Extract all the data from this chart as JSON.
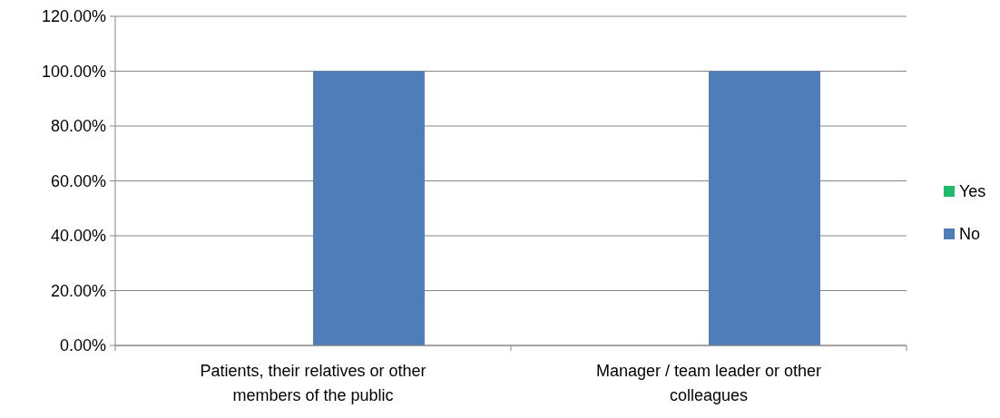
{
  "chart_data": {
    "type": "bar",
    "categories": [
      "Patients, their relatives or other members of the public",
      "Manager / team leader or other colleagues"
    ],
    "series": [
      {
        "name": "Yes",
        "color": "#1fba6b",
        "values": [
          0,
          0
        ]
      },
      {
        "name": "No",
        "color": "#4f7db8",
        "values": [
          100,
          100
        ]
      }
    ],
    "ylim": [
      0,
      120
    ],
    "yticks": [
      {
        "value": 0,
        "label": "0.00%"
      },
      {
        "value": 20,
        "label": "20.00%"
      },
      {
        "value": 40,
        "label": "40.00%"
      },
      {
        "value": 60,
        "label": "60.00%"
      },
      {
        "value": 80,
        "label": "80.00%"
      },
      {
        "value": 100,
        "label": "100.00%"
      },
      {
        "value": 120,
        "label": "120.00%"
      }
    ],
    "grid": "y",
    "legend": "right"
  }
}
